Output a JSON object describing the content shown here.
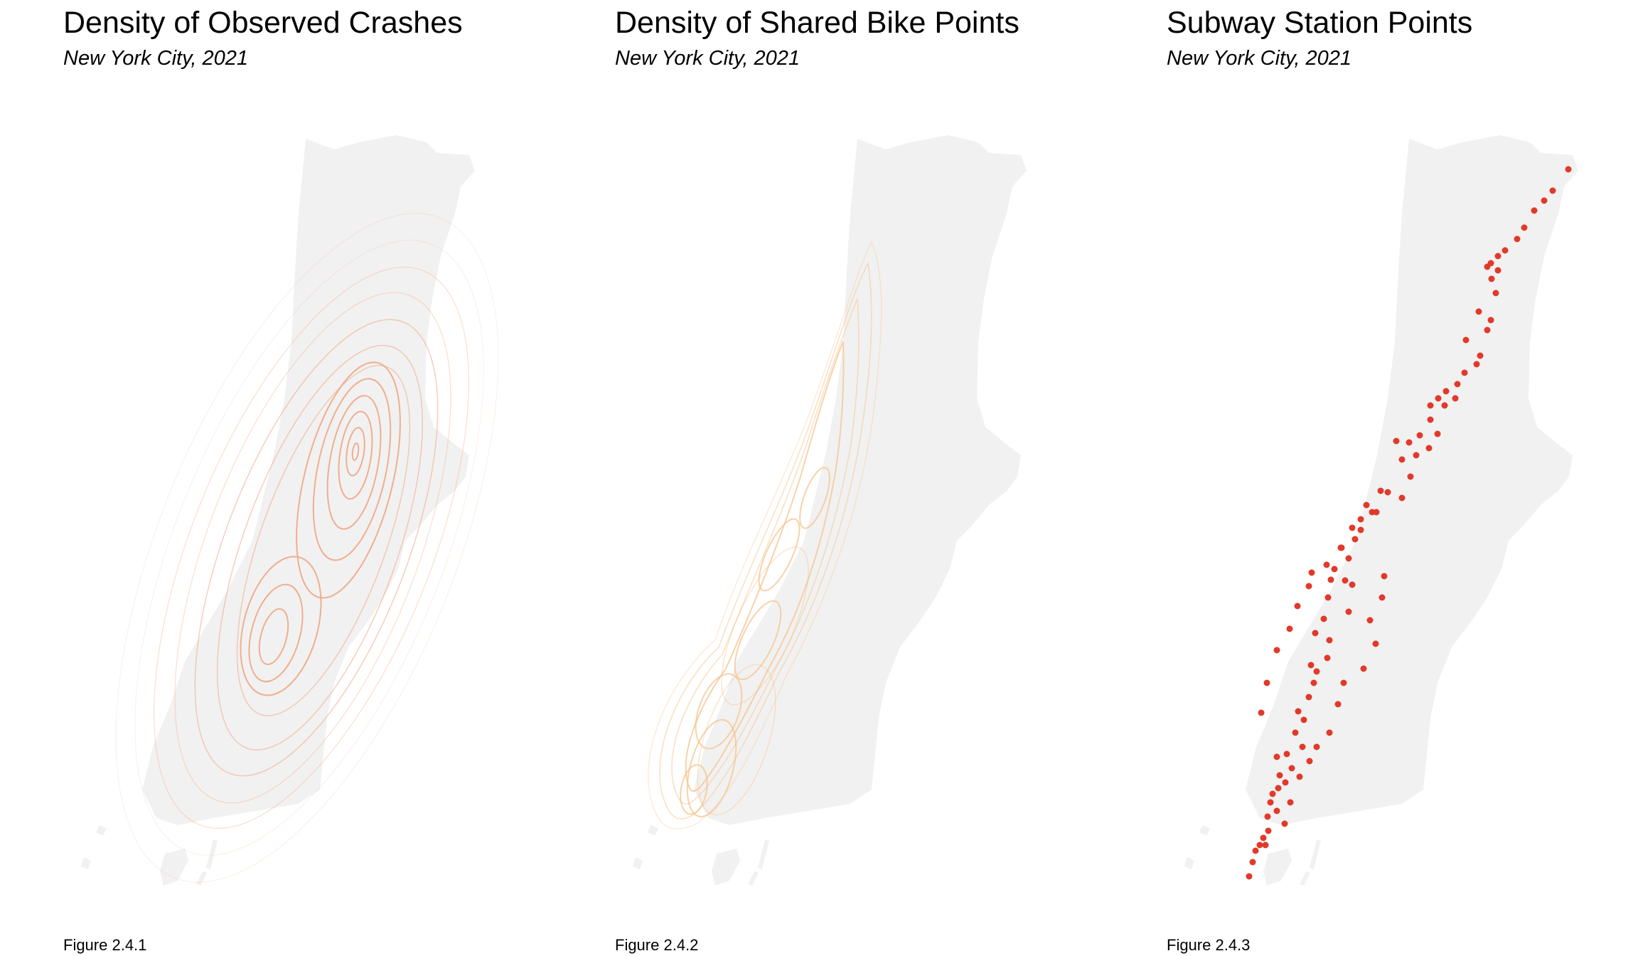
{
  "colors": {
    "land": "#f1f1f1",
    "crash_contour": "#f0a684",
    "bike_contour": "#f6c38c",
    "subway_point": "#e1392a"
  },
  "panels": [
    {
      "title": "Density of Observed Crashes",
      "subtitle": "New York City,  2021",
      "caption": "Figure 2.4.1",
      "layer": "density-contours"
    },
    {
      "title": "Density of Shared Bike Points",
      "subtitle": "New York City, 2021",
      "caption": "Figure 2.4.2",
      "layer": "density-contours"
    },
    {
      "title": "Subway Station Points",
      "subtitle": "New York City, 2021",
      "caption": "Figure 2.4.3",
      "layer": "points"
    }
  ]
}
